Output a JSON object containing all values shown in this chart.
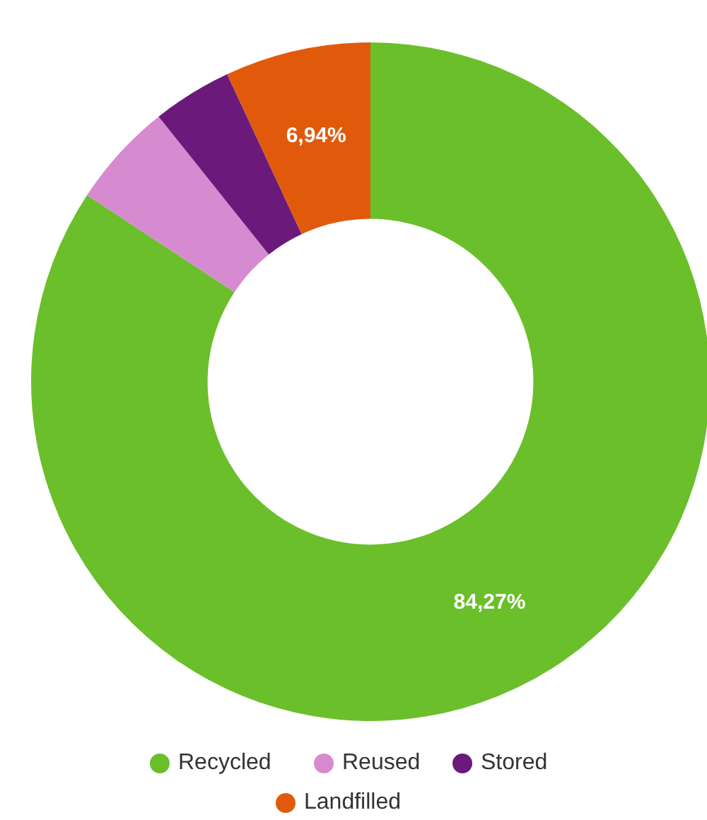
{
  "chart_data": {
    "type": "donut",
    "categories": [
      "Recycled",
      "Reused",
      "Stored",
      "Landfilled"
    ],
    "values": [
      84.27,
      5.0,
      3.79,
      6.94
    ],
    "colors": [
      "#6abf2a",
      "#d68ad0",
      "#6b1a7b",
      "#e15a0c"
    ],
    "value_labels": [
      "84,27%",
      null,
      null,
      "6,94%"
    ],
    "legend": "bottom"
  }
}
